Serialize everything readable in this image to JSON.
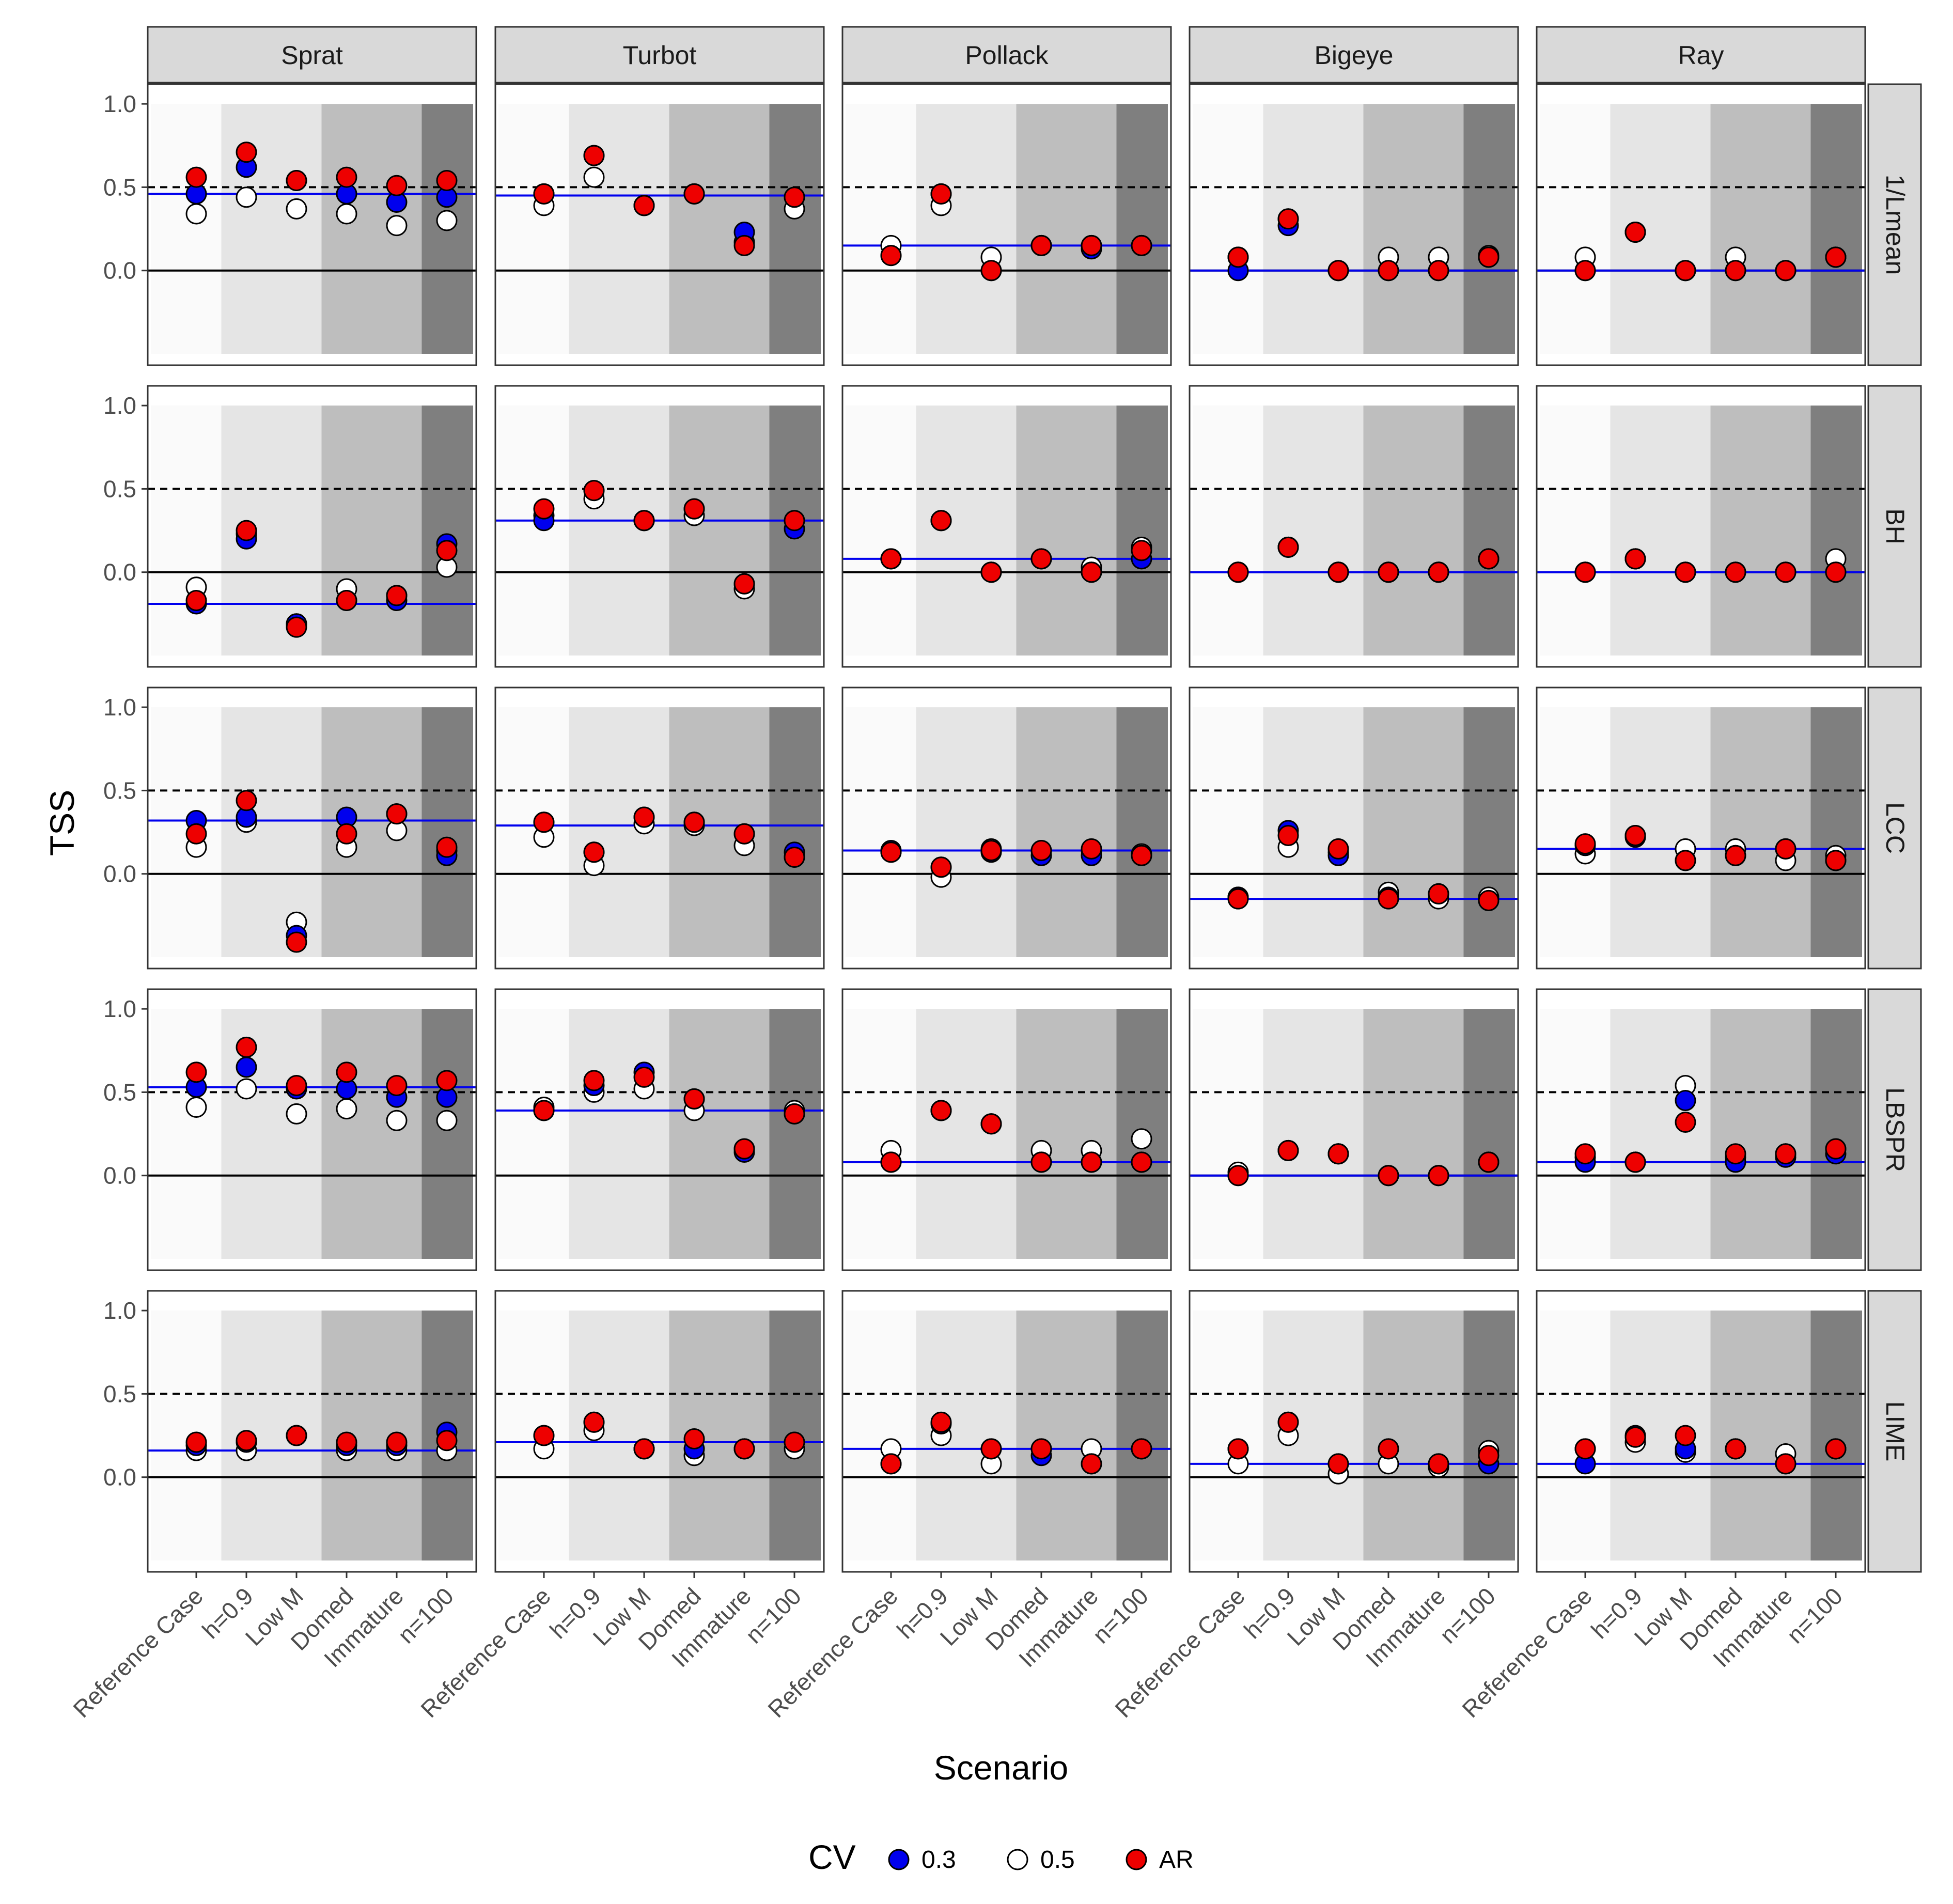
{
  "chart_data": {
    "type": "scatter",
    "xlabel": "Scenario",
    "ylabel": "TSS",
    "ylim": [
      -0.5,
      1.05
    ],
    "yticks": [
      0.0,
      0.5,
      1.0
    ],
    "ytick_labels": [
      "0.0",
      "0.5",
      "1.0"
    ],
    "categories": [
      "Reference Case",
      "h=0.9",
      "Low M",
      "Domed",
      "Immature",
      "n=100"
    ],
    "facet_columns": [
      "Sprat",
      "Turbot",
      "Pollack",
      "Bigeye",
      "Ray"
    ],
    "facet_rows": [
      "1/Lmean",
      "BH",
      "LCC",
      "LBSPR",
      "LIME"
    ],
    "reference_lines": [
      {
        "y": 0.0,
        "style": "solid",
        "color": "#000000"
      },
      {
        "y": 0.5,
        "style": "dashed",
        "color": "#000000"
      }
    ],
    "background_bands": [
      {
        "from": "Reference Case",
        "color": "#fafafa"
      },
      {
        "from": "h=0.9",
        "to": "Low M",
        "color": "#e5e5e5"
      },
      {
        "from": "Domed",
        "to": "Immature",
        "color": "#bebebe"
      },
      {
        "from": "n=100",
        "color": "#7f7f7f"
      }
    ],
    "legend": {
      "title": "CV",
      "position": "bottom",
      "entries": [
        {
          "label": "0.3",
          "color": "#0000ee"
        },
        {
          "label": "0.5",
          "color": "#ffffff"
        },
        {
          "label": "AR",
          "color": "#ee0000"
        }
      ]
    },
    "series_order": [
      "0.5",
      "0.3",
      "AR"
    ],
    "baseline_color": "#0000ee",
    "panels": [
      {
        "column": "Sprat",
        "row": "1/Lmean",
        "baseline": 0.46,
        "series": {
          "0.3": [
            0.46,
            0.62,
            0.54,
            0.46,
            0.41,
            0.44
          ],
          "0.5": [
            0.34,
            0.44,
            0.37,
            0.34,
            0.27,
            0.3
          ],
          "AR": [
            0.56,
            0.71,
            0.54,
            0.56,
            0.51,
            0.54
          ]
        }
      },
      {
        "column": "Turbot",
        "row": "1/Lmean",
        "baseline": 0.45,
        "series": {
          "0.3": [
            0.46,
            0.69,
            0.39,
            0.46,
            0.23,
            0.44
          ],
          "0.5": [
            0.39,
            0.56,
            0.39,
            0.46,
            0.17,
            0.37
          ],
          "AR": [
            0.46,
            0.69,
            0.39,
            0.46,
            0.15,
            0.44
          ]
        }
      },
      {
        "column": "Pollack",
        "row": "1/Lmean",
        "baseline": 0.15,
        "series": {
          "0.3": [
            0.09,
            0.46,
            0.0,
            0.15,
            0.13,
            0.15
          ],
          "0.5": [
            0.15,
            0.39,
            0.08,
            0.15,
            0.15,
            0.15
          ],
          "AR": [
            0.09,
            0.46,
            0.0,
            0.15,
            0.15,
            0.15
          ]
        }
      },
      {
        "column": "Bigeye",
        "row": "1/Lmean",
        "baseline": 0.0,
        "series": {
          "0.3": [
            0.0,
            0.27,
            0.0,
            0.0,
            0.0,
            0.08
          ],
          "0.5": [
            0.08,
            0.31,
            0.0,
            0.08,
            0.08,
            0.09
          ],
          "AR": [
            0.08,
            0.31,
            0.0,
            0.0,
            0.0,
            0.08
          ]
        }
      },
      {
        "column": "Ray",
        "row": "1/Lmean",
        "baseline": 0.0,
        "series": {
          "0.3": [
            0.0,
            0.23,
            0.0,
            0.0,
            0.0,
            0.08
          ],
          "0.5": [
            0.08,
            0.23,
            0.0,
            0.08,
            0.0,
            0.08
          ],
          "AR": [
            0.0,
            0.23,
            0.0,
            0.0,
            0.0,
            0.08
          ]
        }
      },
      {
        "column": "Sprat",
        "row": "BH",
        "baseline": -0.19,
        "series": {
          "0.3": [
            -0.19,
            0.2,
            -0.31,
            -0.17,
            -0.17,
            0.17
          ],
          "0.5": [
            -0.09,
            0.23,
            -0.31,
            -0.1,
            -0.14,
            0.03
          ],
          "AR": [
            -0.17,
            0.25,
            -0.33,
            -0.17,
            -0.14,
            0.13
          ]
        }
      },
      {
        "column": "Turbot",
        "row": "BH",
        "baseline": 0.31,
        "series": {
          "0.3": [
            0.31,
            0.49,
            0.31,
            0.38,
            -0.07,
            0.26
          ],
          "0.5": [
            0.34,
            0.44,
            0.31,
            0.34,
            -0.1,
            0.31
          ],
          "AR": [
            0.38,
            0.49,
            0.31,
            0.38,
            -0.07,
            0.31
          ]
        }
      },
      {
        "column": "Pollack",
        "row": "BH",
        "baseline": 0.08,
        "series": {
          "0.3": [
            0.08,
            0.31,
            0.0,
            0.08,
            0.0,
            0.08
          ],
          "0.5": [
            0.08,
            0.31,
            0.0,
            0.08,
            0.03,
            0.15
          ],
          "AR": [
            0.08,
            0.31,
            0.0,
            0.08,
            0.0,
            0.13
          ]
        }
      },
      {
        "column": "Bigeye",
        "row": "BH",
        "baseline": 0.0,
        "series": {
          "0.3": [
            0.0,
            0.15,
            0.0,
            0.0,
            0.0,
            0.08
          ],
          "0.5": [
            0.0,
            0.15,
            0.0,
            0.0,
            0.0,
            0.08
          ],
          "AR": [
            0.0,
            0.15,
            0.0,
            0.0,
            0.0,
            0.08
          ]
        }
      },
      {
        "column": "Ray",
        "row": "BH",
        "baseline": 0.0,
        "series": {
          "0.3": [
            0.0,
            0.08,
            0.0,
            0.0,
            0.0,
            0.0
          ],
          "0.5": [
            0.0,
            0.08,
            0.0,
            0.0,
            0.0,
            0.08
          ],
          "AR": [
            0.0,
            0.08,
            0.0,
            0.0,
            0.0,
            0.0
          ]
        }
      },
      {
        "column": "Sprat",
        "row": "LCC",
        "baseline": 0.32,
        "series": {
          "0.3": [
            0.32,
            0.34,
            -0.37,
            0.34,
            0.36,
            0.11
          ],
          "0.5": [
            0.16,
            0.31,
            -0.29,
            0.16,
            0.26,
            0.14
          ],
          "AR": [
            0.24,
            0.44,
            -0.41,
            0.24,
            0.36,
            0.16
          ]
        }
      },
      {
        "column": "Turbot",
        "row": "LCC",
        "baseline": 0.29,
        "series": {
          "0.3": [
            0.31,
            0.13,
            0.34,
            0.31,
            0.24,
            0.13
          ],
          "0.5": [
            0.22,
            0.05,
            0.3,
            0.29,
            0.17,
            0.1
          ],
          "AR": [
            0.31,
            0.13,
            0.34,
            0.31,
            0.24,
            0.1
          ]
        }
      },
      {
        "column": "Pollack",
        "row": "LCC",
        "baseline": 0.14,
        "series": {
          "0.3": [
            0.14,
            0.04,
            0.13,
            0.11,
            0.11,
            0.11
          ],
          "0.5": [
            0.13,
            -0.02,
            0.15,
            0.14,
            0.14,
            0.12
          ],
          "AR": [
            0.13,
            0.04,
            0.14,
            0.14,
            0.15,
            0.11
          ]
        }
      },
      {
        "column": "Bigeye",
        "row": "LCC",
        "baseline": -0.15,
        "series": {
          "0.3": [
            -0.14,
            0.26,
            0.11,
            -0.14,
            -0.12,
            -0.16
          ],
          "0.5": [
            -0.14,
            0.16,
            0.13,
            -0.11,
            -0.15,
            -0.14
          ],
          "AR": [
            -0.15,
            0.23,
            0.15,
            -0.15,
            -0.12,
            -0.16
          ]
        }
      },
      {
        "column": "Ray",
        "row": "LCC",
        "baseline": 0.15,
        "series": {
          "0.3": [
            0.17,
            0.22,
            0.08,
            0.11,
            0.15,
            0.08
          ],
          "0.5": [
            0.12,
            0.23,
            0.15,
            0.15,
            0.08,
            0.11
          ],
          "AR": [
            0.18,
            0.23,
            0.08,
            0.11,
            0.15,
            0.08
          ]
        }
      },
      {
        "column": "Sprat",
        "row": "LBSPR",
        "baseline": 0.53,
        "series": {
          "0.3": [
            0.53,
            0.65,
            0.52,
            0.52,
            0.47,
            0.47
          ],
          "0.5": [
            0.41,
            0.52,
            0.37,
            0.4,
            0.33,
            0.33
          ],
          "AR": [
            0.62,
            0.77,
            0.54,
            0.62,
            0.54,
            0.57
          ]
        }
      },
      {
        "column": "Turbot",
        "row": "LBSPR",
        "baseline": 0.39,
        "series": {
          "0.3": [
            0.39,
            0.54,
            0.62,
            0.46,
            0.14,
            0.37
          ],
          "0.5": [
            0.41,
            0.5,
            0.52,
            0.39,
            0.16,
            0.39
          ],
          "AR": [
            0.39,
            0.57,
            0.59,
            0.46,
            0.16,
            0.37
          ]
        }
      },
      {
        "column": "Pollack",
        "row": "LBSPR",
        "baseline": 0.08,
        "series": {
          "0.3": [
            0.08,
            0.39,
            0.31,
            0.08,
            0.08,
            0.08
          ],
          "0.5": [
            0.15,
            0.39,
            0.31,
            0.15,
            0.15,
            0.22
          ],
          "AR": [
            0.08,
            0.39,
            0.31,
            0.08,
            0.08,
            0.08
          ]
        }
      },
      {
        "column": "Bigeye",
        "row": "LBSPR",
        "baseline": 0.0,
        "series": {
          "0.3": [
            0.0,
            0.15,
            0.13,
            0.0,
            0.0,
            0.08
          ],
          "0.5": [
            0.02,
            0.15,
            0.13,
            0.0,
            0.0,
            0.08
          ],
          "AR": [
            0.0,
            0.15,
            0.13,
            0.0,
            0.0,
            0.08
          ]
        }
      },
      {
        "column": "Ray",
        "row": "LBSPR",
        "baseline": 0.08,
        "series": {
          "0.3": [
            0.08,
            0.08,
            0.45,
            0.08,
            0.11,
            0.13
          ],
          "0.5": [
            0.11,
            0.08,
            0.54,
            0.11,
            0.13,
            0.16
          ],
          "AR": [
            0.13,
            0.08,
            0.32,
            0.13,
            0.13,
            0.16
          ]
        }
      },
      {
        "column": "Sprat",
        "row": "LIME",
        "baseline": 0.16,
        "series": {
          "0.3": [
            0.19,
            0.21,
            0.25,
            0.19,
            0.19,
            0.27
          ],
          "0.5": [
            0.16,
            0.16,
            0.25,
            0.16,
            0.16,
            0.16
          ],
          "AR": [
            0.21,
            0.22,
            0.25,
            0.21,
            0.21,
            0.22
          ]
        }
      },
      {
        "column": "Turbot",
        "row": "LIME",
        "baseline": 0.21,
        "series": {
          "0.3": [
            0.25,
            0.33,
            0.17,
            0.17,
            0.17,
            0.21
          ],
          "0.5": [
            0.17,
            0.28,
            0.17,
            0.13,
            0.17,
            0.17
          ],
          "AR": [
            0.25,
            0.33,
            0.17,
            0.23,
            0.17,
            0.21
          ]
        }
      },
      {
        "column": "Pollack",
        "row": "LIME",
        "baseline": 0.17,
        "series": {
          "0.3": [
            0.08,
            0.32,
            0.17,
            0.13,
            0.08,
            0.17
          ],
          "0.5": [
            0.17,
            0.25,
            0.08,
            0.17,
            0.17,
            0.17
          ],
          "AR": [
            0.08,
            0.33,
            0.17,
            0.17,
            0.08,
            0.17
          ]
        }
      },
      {
        "column": "Bigeye",
        "row": "LIME",
        "baseline": 0.08,
        "series": {
          "0.3": [
            0.17,
            0.33,
            0.08,
            0.17,
            0.08,
            0.08
          ],
          "0.5": [
            0.08,
            0.25,
            0.02,
            0.08,
            0.06,
            0.16
          ],
          "AR": [
            0.17,
            0.33,
            0.08,
            0.17,
            0.08,
            0.13
          ]
        }
      },
      {
        "column": "Ray",
        "row": "LIME",
        "baseline": 0.08,
        "series": {
          "0.3": [
            0.08,
            0.25,
            0.17,
            0.17,
            0.08,
            0.17
          ],
          "0.5": [
            0.17,
            0.21,
            0.15,
            0.17,
            0.14,
            0.17
          ],
          "AR": [
            0.17,
            0.24,
            0.25,
            0.17,
            0.08,
            0.17
          ]
        }
      }
    ]
  }
}
